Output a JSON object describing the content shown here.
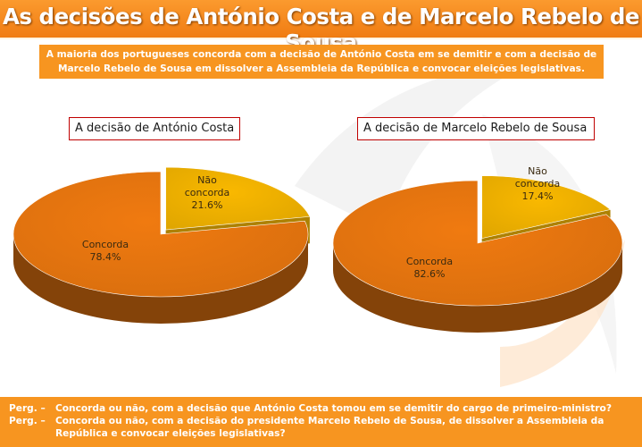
{
  "title": "As decisões de António Costa e de Marcelo Rebelo de Sousa",
  "subtitle": "A maioria dos portugueses concorda com a decisão de António Costa em se demitir e com a decisão de Marcelo Rebelo de Sousa em dissolver a Assembleia da República e convocar eleições legislativas.",
  "colors": {
    "orange": "#f07a10",
    "yellow": "#f9b800",
    "banner": "#f79520"
  },
  "questions": [
    {
      "prefix": "Perg. –",
      "text": "Concorda ou não, com a decisão que António Costa tomou em se demitir do cargo de primeiro-ministro?"
    },
    {
      "prefix": "Perg. –",
      "text": "Concorda ou não, com a decisão do presidente Marcelo Rebelo de Sousa, de dissolver a Assembleia da República e convocar eleições legislativas?"
    }
  ],
  "chart_data": [
    {
      "type": "pie",
      "title": "A decisão de António Costa",
      "categories": [
        "Concorda",
        "Não concorda"
      ],
      "values": [
        78.4,
        21.6
      ],
      "value_labels": [
        "78.4%",
        "21.6%"
      ],
      "label_lines": [
        [
          "Concorda",
          "78.4%"
        ],
        [
          "Não",
          "concorda",
          "21.6%"
        ]
      ]
    },
    {
      "type": "pie",
      "title": "A decisão de Marcelo Rebelo de Sousa",
      "categories": [
        "Concorda",
        "Não concorda"
      ],
      "values": [
        82.6,
        17.4
      ],
      "value_labels": [
        "82.6%",
        "17.4%"
      ],
      "label_lines": [
        [
          "Concorda",
          "82.6%"
        ],
        [
          "Não",
          "concorda",
          "17.4%"
        ]
      ]
    }
  ]
}
